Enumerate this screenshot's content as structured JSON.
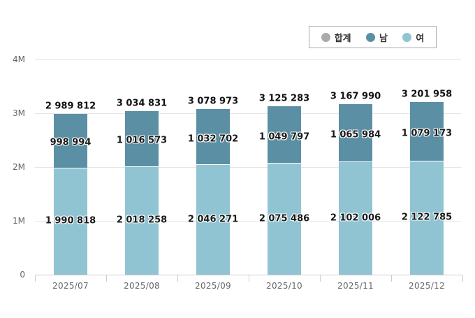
{
  "legend": [
    {
      "label": "합계",
      "color": "#aaaaaa"
    },
    {
      "label": "남",
      "color": "#5b8fa3"
    },
    {
      "label": "여",
      "color": "#91c4d3"
    }
  ],
  "y_axis": {
    "ticks": [
      "0",
      "1M",
      "2M",
      "3M",
      "4M"
    ]
  },
  "x_axis": {
    "categories": [
      "2025/07",
      "2025/08",
      "2025/09",
      "2025/10",
      "2025/11",
      "2025/12"
    ]
  },
  "labels": {
    "total": [
      "2 989 812",
      "3 034 831",
      "3 078 973",
      "3 125 283",
      "3 167 990",
      "3 201 958"
    ],
    "male": [
      "998 994",
      "1 016 573",
      "1 032 702",
      "1 049 797",
      "1 065 984",
      "1 079 173"
    ],
    "female": [
      "1 990 818",
      "2 018 258",
      "2 046 271",
      "2 075 486",
      "2 102 006",
      "2 122 785"
    ]
  },
  "chart_data": {
    "type": "bar",
    "stacked": true,
    "title": "",
    "xlabel": "",
    "ylabel": "",
    "categories": [
      "2025/07",
      "2025/08",
      "2025/09",
      "2025/10",
      "2025/11",
      "2025/12"
    ],
    "series": [
      {
        "name": "여",
        "color": "#91c4d3",
        "values": [
          1990818,
          2018258,
          2046271,
          2075486,
          2102006,
          2122785
        ]
      },
      {
        "name": "남",
        "color": "#5b8fa3",
        "values": [
          998994,
          1016573,
          1032702,
          1049797,
          1065984,
          1079173
        ]
      },
      {
        "name": "합계",
        "color": "#aaaaaa",
        "values": [
          2989812,
          3034831,
          3078973,
          3125283,
          3167990,
          3201958
        ]
      }
    ],
    "ylim": [
      0,
      4000000
    ],
    "yticks": [
      "0",
      "1M",
      "2M",
      "3M",
      "4M"
    ],
    "grid": true,
    "legend_position": "top-right"
  }
}
